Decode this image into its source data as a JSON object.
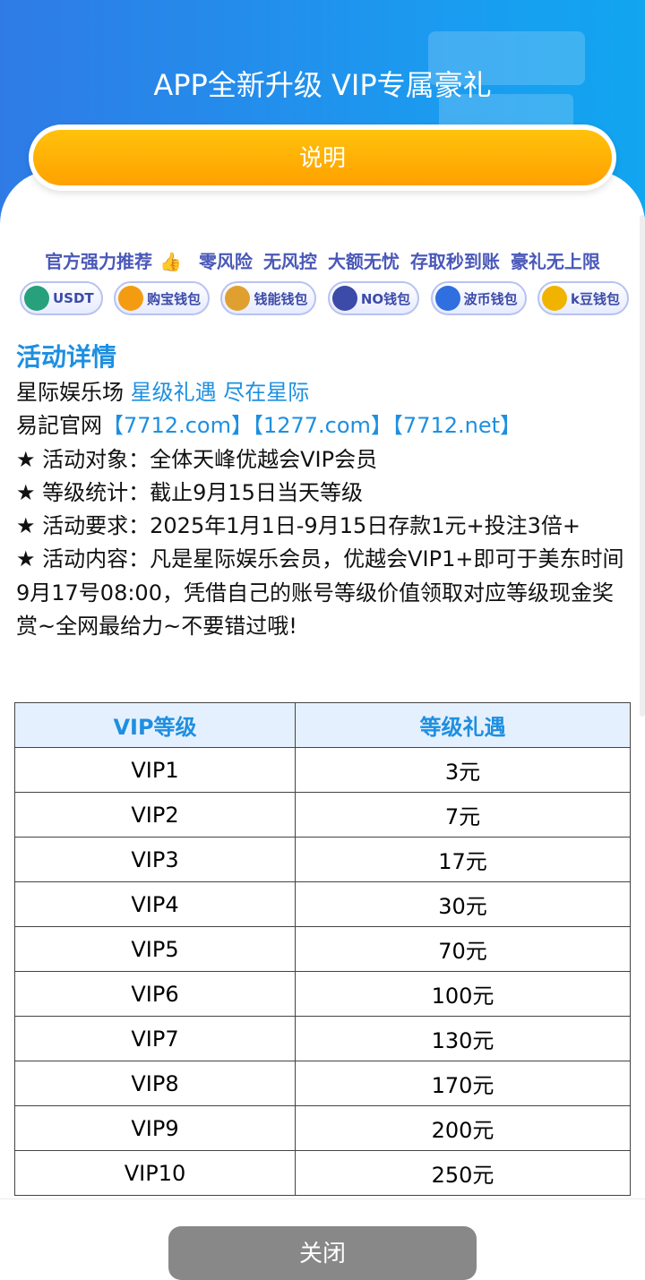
{
  "header": {
    "title": "APP全新升级 VIP专属豪礼",
    "button_label": "说明"
  },
  "slogan": {
    "lead": "官方强力推荐",
    "items": [
      "零风险",
      "无风控",
      "大额无忧",
      "存取秒到账",
      "豪礼无上限"
    ]
  },
  "wallets": [
    {
      "label": "USDT",
      "icon": "tether-icon",
      "color": "#26a17b"
    },
    {
      "label": "购宝钱包",
      "icon": "goubao-icon",
      "color": "#f39c12"
    },
    {
      "label": "钱能钱包",
      "icon": "qianneng-icon",
      "color": "#e0a030"
    },
    {
      "label": "NO钱包",
      "icon": "no-wallet-icon",
      "color": "#3c4aa8"
    },
    {
      "label": "波币钱包",
      "icon": "bobi-icon",
      "color": "#2f6fe0"
    },
    {
      "label": "k豆钱包",
      "icon": "kdou-icon",
      "color": "#f0b400"
    }
  ],
  "details": {
    "heading": "活动详情",
    "line1_black": "星际娱乐场",
    "line1_blue": "星级礼遇 尽在星际",
    "line2_black": "易記官网",
    "line2_blue": "【7712.com】【1277.com】【7712.net】",
    "items": [
      "★ 活动对象：全体天峰优越会VIP会员",
      "★ 等级统计：截止9月15日当天等级",
      "★ 活动要求：2025年1月1日-9月15日存款1元+投注3倍+",
      "★ 活动内容：凡是星际娱乐会员，优越会VIP1+即可于美东时间9月17号08:00，凭借自己的账号等级价值领取对应等级现金奖赏~全网最给力~不要错过哦!"
    ]
  },
  "table": {
    "headers": [
      "VIP等级",
      "等级礼遇"
    ],
    "rows": [
      [
        "VIP1",
        "3元"
      ],
      [
        "VIP2",
        "7元"
      ],
      [
        "VIP3",
        "17元"
      ],
      [
        "VIP4",
        "30元"
      ],
      [
        "VIP5",
        "70元"
      ],
      [
        "VIP6",
        "100元"
      ],
      [
        "VIP7",
        "130元"
      ],
      [
        "VIP8",
        "170元"
      ],
      [
        "VIP9",
        "200元"
      ],
      [
        "VIP10",
        "250元"
      ]
    ]
  },
  "footer": {
    "close_label": "关闭"
  }
}
